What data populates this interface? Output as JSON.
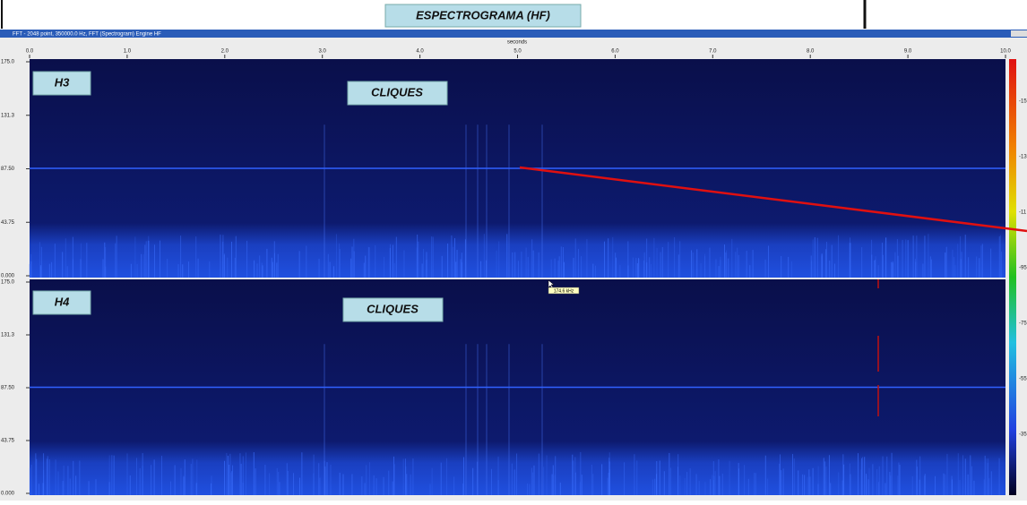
{
  "header": {
    "title": "ESPECTROGRAMA (HF)"
  },
  "window": {
    "title": "FFT - 2048 point, 350000.0 Hz, FFT (Spectrogram) Engine HF"
  },
  "x_axis": {
    "label": "seconds",
    "ticks": [
      "0.0",
      "1.0",
      "2.0",
      "3.0",
      "4.0",
      "5.0",
      "6.0",
      "7.0",
      "8.0",
      "9.0",
      "10.0"
    ]
  },
  "panels": [
    {
      "name": "H3",
      "annotation": "CLIQUES",
      "y_ticks": [
        "175.0",
        "131.3",
        "87.50",
        "43.75",
        "0.000"
      ]
    },
    {
      "name": "H4",
      "annotation": "CLIQUES",
      "y_ticks": [
        "175.0",
        "131.3",
        "87.50",
        "43.75",
        "0.000"
      ]
    }
  ],
  "cursor_readout": "174.6 kHz",
  "colorbar_ticks": [
    "-15",
    "-13",
    "-11",
    "-95",
    "-75",
    "-55",
    "-35"
  ]
}
